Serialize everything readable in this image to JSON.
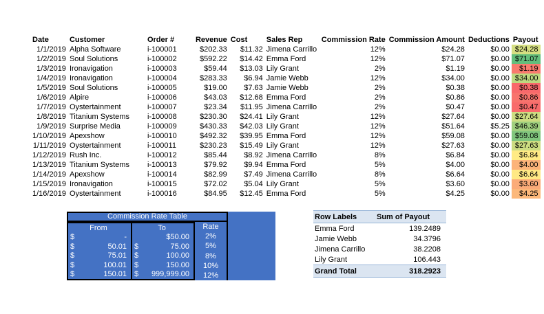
{
  "sheet": {
    "main_table": {
      "columns": [
        "Date",
        "Customer",
        "Order #",
        "Revenue",
        "Cost",
        "Sales Rep",
        "Commission Rate",
        "Commission Amount",
        "Deductions",
        "Payout"
      ],
      "rows": [
        {
          "date": "1/1/2019",
          "customer": "Alpha Software",
          "order": "i-100001",
          "revenue": "$202.33",
          "cost": "$11.32",
          "sales_rep": "Jimena Carrillo",
          "commission_rate": "12%",
          "commission_amount": "$24.28",
          "deductions": "$0.00",
          "payout": "$24.28",
          "payout_color": "#D5DF82"
        },
        {
          "date": "1/2/2019",
          "customer": "Soul Solutions",
          "order": "i-100002",
          "revenue": "$592.22",
          "cost": "$14.42",
          "sales_rep": "Emma Ford",
          "commission_rate": "12%",
          "commission_amount": "$71.07",
          "deductions": "$0.00",
          "payout": "$71.07",
          "payout_color": "#63BE7B"
        },
        {
          "date": "1/3/2019",
          "customer": "Ironavigation",
          "order": "i-100003",
          "revenue": "$59.44",
          "cost": "$13.03",
          "sales_rep": "Lily Grant",
          "commission_rate": "2%",
          "commission_amount": "$1.19",
          "deductions": "$0.00",
          "payout": "$1.19",
          "payout_color": "#F97A6E"
        },
        {
          "date": "1/4/2019",
          "customer": "Ironavigation",
          "order": "i-100004",
          "revenue": "$283.33",
          "cost": "$6.94",
          "sales_rep": "Jamie Webb",
          "commission_rate": "12%",
          "commission_amount": "$34.00",
          "deductions": "$0.00",
          "payout": "$34.00",
          "payout_color": "#BDD880"
        },
        {
          "date": "1/5/2019",
          "customer": "Soul Solutions",
          "order": "i-100005",
          "revenue": "$19.00",
          "cost": "$7.63",
          "sales_rep": "Jamie Webb",
          "commission_rate": "2%",
          "commission_amount": "$0.38",
          "deductions": "$0.00",
          "payout": "$0.38",
          "payout_color": "#F8696B"
        },
        {
          "date": "1/6/2019",
          "customer": "Alpire",
          "order": "i-100006",
          "revenue": "$43.03",
          "cost": "$12.68",
          "sales_rep": "Emma Ford",
          "commission_rate": "2%",
          "commission_amount": "$0.86",
          "deductions": "$0.00",
          "payout": "$0.86",
          "payout_color": "#F8736D"
        },
        {
          "date": "1/7/2019",
          "customer": "Oystertainment",
          "order": "i-100007",
          "revenue": "$23.34",
          "cost": "$11.95",
          "sales_rep": "Jimena Carrillo",
          "commission_rate": "2%",
          "commission_amount": "$0.47",
          "deductions": "$0.00",
          "payout": "$0.47",
          "payout_color": "#F86B6B"
        },
        {
          "date": "1/8/2019",
          "customer": "Titanium Systems",
          "order": "i-100008",
          "revenue": "$230.30",
          "cost": "$24.41",
          "sales_rep": "Lily Grant",
          "commission_rate": "12%",
          "commission_amount": "$27.64",
          "deductions": "$0.00",
          "payout": "$27.64",
          "payout_color": "#CCDC81"
        },
        {
          "date": "1/9/2019",
          "customer": "Surprise Media",
          "order": "i-100009",
          "revenue": "$430.33",
          "cost": "$42.03",
          "sales_rep": "Lily Grant",
          "commission_rate": "12%",
          "commission_amount": "$51.64",
          "deductions": "$5.25",
          "payout": "$46.39",
          "payout_color": "#9FCF7E"
        },
        {
          "date": "1/10/2019",
          "customer": "Apexshow",
          "order": "i-100010",
          "revenue": "$492.32",
          "cost": "$39.95",
          "sales_rep": "Emma Ford",
          "commission_rate": "12%",
          "commission_amount": "$59.08",
          "deductions": "$0.00",
          "payout": "$59.08",
          "payout_color": "#80C67D"
        },
        {
          "date": "1/11/2019",
          "customer": "Oystertainment",
          "order": "i-100011",
          "revenue": "$230.23",
          "cost": "$15.49",
          "sales_rep": "Lily Grant",
          "commission_rate": "12%",
          "commission_amount": "$27.63",
          "deductions": "$0.00",
          "payout": "$27.63",
          "payout_color": "#CCDC81"
        },
        {
          "date": "1/12/2019",
          "customer": "Rush Inc.",
          "order": "i-100012",
          "revenue": "$85.44",
          "cost": "$8.92",
          "sales_rep": "Jimena Carrillo",
          "commission_rate": "8%",
          "commission_amount": "$6.84",
          "deductions": "$0.00",
          "payout": "$6.84",
          "payout_color": "#FFEB84"
        },
        {
          "date": "1/13/2019",
          "customer": "Titanium Systems",
          "order": "i-100013",
          "revenue": "$79.92",
          "cost": "$9.94",
          "sales_rep": "Emma Ford",
          "commission_rate": "5%",
          "commission_amount": "$4.00",
          "deductions": "$0.00",
          "payout": "$4.00",
          "payout_color": "#FCB379"
        },
        {
          "date": "1/14/2019",
          "customer": "Apexshow",
          "order": "i-100014",
          "revenue": "$82.99",
          "cost": "$7.49",
          "sales_rep": "Jimena Carrillo",
          "commission_rate": "8%",
          "commission_amount": "$6.64",
          "deductions": "$0.00",
          "payout": "$6.64",
          "payout_color": "#FFE984"
        },
        {
          "date": "1/15/2019",
          "customer": "Ironavigation",
          "order": "i-100015",
          "revenue": "$72.02",
          "cost": "$5.04",
          "sales_rep": "Lily Grant",
          "commission_rate": "5%",
          "commission_amount": "$3.60",
          "deductions": "$0.00",
          "payout": "$3.60",
          "payout_color": "#FBAB78"
        },
        {
          "date": "1/16/2019",
          "customer": "Oystertainment",
          "order": "i-100016",
          "revenue": "$84.95",
          "cost": "$12.45",
          "sales_rep": "Emma Ford",
          "commission_rate": "5%",
          "commission_amount": "$4.25",
          "deductions": "$0.00",
          "payout": "$4.25",
          "payout_color": "#FCB87A"
        }
      ]
    },
    "commission_rate_table": {
      "title": "Commission Rate Table",
      "headers": [
        "From",
        "To",
        "Rate"
      ],
      "rows": [
        {
          "from_sign": "$",
          "from": "-",
          "to_sign": "",
          "to": "$50.00",
          "rate": "2%"
        },
        {
          "from_sign": "$",
          "from": "50.01",
          "to_sign": "$",
          "to": "75.00",
          "rate": "5%"
        },
        {
          "from_sign": "$",
          "from": "75.01",
          "to_sign": "$",
          "to": "100.00",
          "rate": "8%"
        },
        {
          "from_sign": "$",
          "from": "100.01",
          "to_sign": "$",
          "to": "150.00",
          "rate": "10%"
        },
        {
          "from_sign": "$",
          "from": "150.01",
          "to_sign": "$",
          "to": "999,999.00",
          "rate": "12%"
        }
      ],
      "fill_color": "#4472C4",
      "border_color": "#000000",
      "text_color": "#FFFFFF"
    },
    "pivot_table": {
      "headers": [
        "Row Labels",
        "Sum of Payout"
      ],
      "rows": [
        {
          "label": "Emma Ford",
          "value": "139.2489"
        },
        {
          "label": "Jamie Webb",
          "value": "34.3796"
        },
        {
          "label": "Jimena Carrillo",
          "value": "38.2208"
        },
        {
          "label": "Lily Grant",
          "value": "106.443"
        }
      ],
      "grand_total": {
        "label": "Grand Total",
        "value": "318.2923"
      },
      "header_fill": "#DBE5F1",
      "header_border": "#95B3D7"
    }
  }
}
